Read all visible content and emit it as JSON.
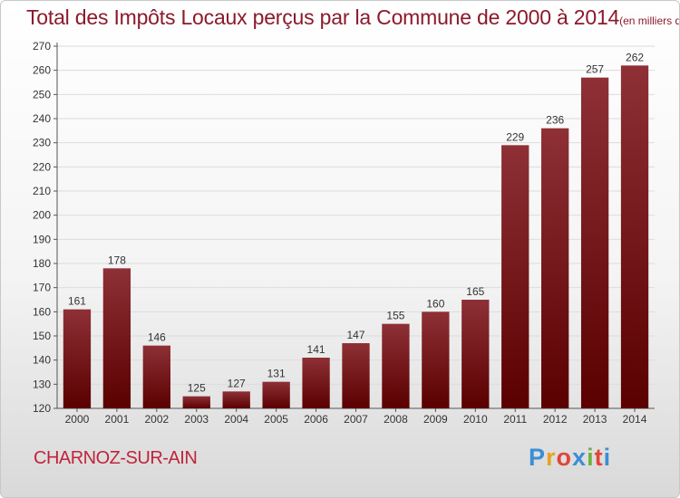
{
  "header": {
    "title": "Total des Impôts Locaux perçus par la Commune de 2000 à 2014",
    "unit": "(en milliers d'€)"
  },
  "footer": {
    "commune": "CHARNOZ-SUR-AIN",
    "logo": "Proxiti"
  },
  "colors": {
    "bar_light": "#8e3036",
    "bar_dark": "#5a0000",
    "title": "#8b1a2b",
    "commune": "#c0243a",
    "logo_letters": [
      "#3a8ed6",
      "#e8a21f",
      "#e0463a",
      "#3a8ed6",
      "#6db33f",
      "#e0463a",
      "#3a8ed6"
    ]
  },
  "chart_data": {
    "type": "bar",
    "title": "Total des Impôts Locaux perçus par la Commune de 2000 à 2014",
    "xlabel": "",
    "ylabel": "",
    "ylim": [
      120,
      270
    ],
    "yticks": [
      120,
      130,
      140,
      150,
      160,
      170,
      180,
      190,
      200,
      210,
      220,
      230,
      240,
      250,
      260,
      270
    ],
    "grid": true,
    "categories": [
      "2000",
      "2001",
      "2002",
      "2003",
      "2004",
      "2005",
      "2006",
      "2007",
      "2008",
      "2009",
      "2010",
      "2011",
      "2012",
      "2013",
      "2014"
    ],
    "values": [
      161,
      178,
      146,
      125,
      127,
      131,
      141,
      147,
      155,
      160,
      165,
      229,
      236,
      257,
      262
    ]
  }
}
